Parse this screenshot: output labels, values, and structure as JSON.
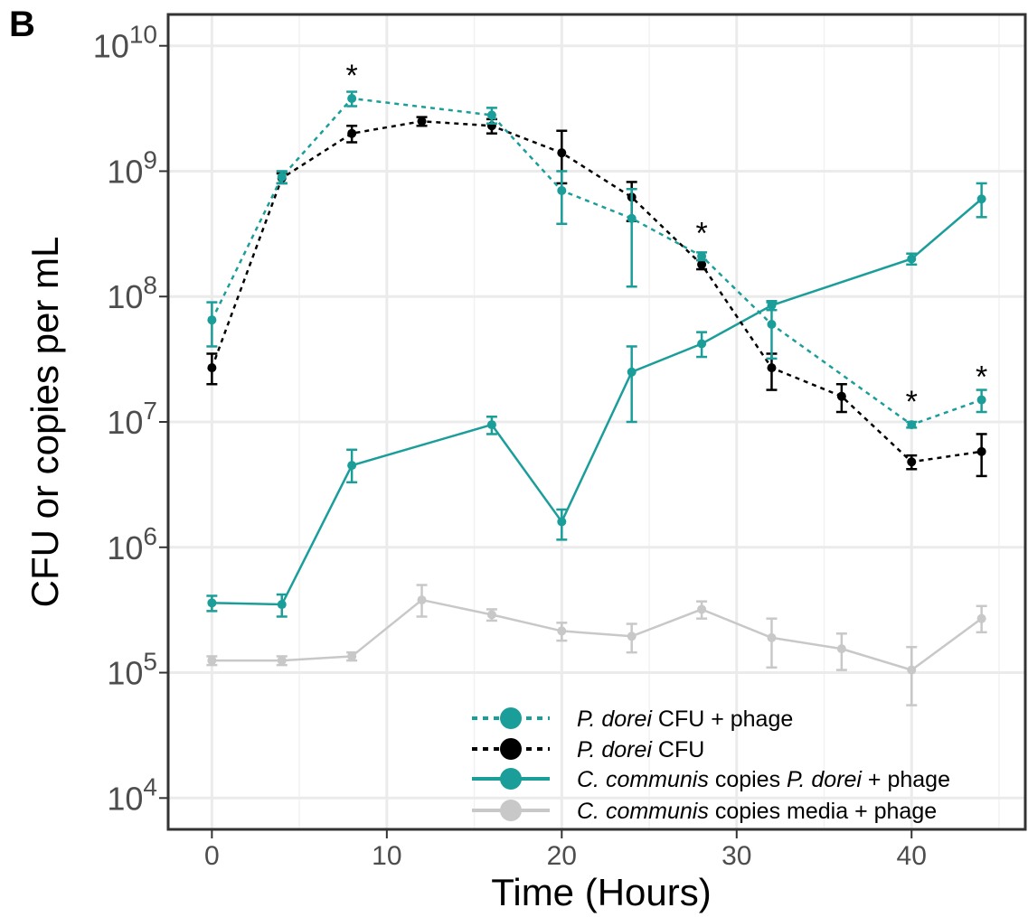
{
  "panel_label": "B",
  "chart_data": {
    "type": "line",
    "title": "",
    "xlabel": "Time (Hours)",
    "ylabel": "CFU or copies per mL",
    "xlim": [
      -2.5,
      46.5
    ],
    "ylim_log10": [
      3.75,
      10.25
    ],
    "y_scale": "log10",
    "x_ticks": [
      0,
      10,
      20,
      30,
      40
    ],
    "x_tick_labels": [
      "0",
      "10",
      "20",
      "30",
      "40"
    ],
    "y_ticks": [
      {
        "value": 10000,
        "base": "10",
        "exp": "4"
      },
      {
        "value": 100000,
        "base": "10",
        "exp": "5"
      },
      {
        "value": 1000000,
        "base": "10",
        "exp": "6"
      },
      {
        "value": 10000000,
        "base": "10",
        "exp": "7"
      },
      {
        "value": 100000000,
        "base": "10",
        "exp": "8"
      },
      {
        "value": 1000000000,
        "base": "10",
        "exp": "9"
      },
      {
        "value": 10000000000,
        "base": "10",
        "exp": "10"
      }
    ],
    "grid": true,
    "legend_position": "bottom-right",
    "series": [
      {
        "name_italic": "P. dorei",
        "name_rest": " CFU + phage",
        "color": "#1b9e9a",
        "line": "dotted",
        "x": [
          0,
          4,
          8,
          16,
          20,
          24,
          28,
          32,
          40,
          44
        ],
        "y": [
          65000000,
          900000000,
          3800000000,
          2800000000,
          700000000,
          420000000,
          210000000,
          60000000,
          9500000,
          15000000
        ],
        "err_low": [
          40000000,
          800000000,
          3300000000,
          2400000000,
          380000000,
          120000000,
          195000000,
          32000000,
          9000000,
          12000000
        ],
        "err_high": [
          90000000,
          1000000000,
          4300000000,
          3200000000,
          1000000000,
          720000000,
          225000000,
          90000000,
          10000000,
          18000000
        ]
      },
      {
        "name_italic": "P. dorei",
        "name_rest": " CFU",
        "color": "#000000",
        "line": "dotted",
        "x": [
          0,
          4,
          8,
          12,
          16,
          20,
          24,
          28,
          32,
          36,
          40,
          44
        ],
        "y": [
          27000000,
          880000000,
          2000000000,
          2500000000,
          2300000000,
          1400000000,
          620000000,
          180000000,
          27000000,
          16000000,
          4800000,
          5800000
        ],
        "err_low": [
          20000000,
          800000000,
          1700000000,
          2300000000,
          2000000000,
          800000000,
          400000000,
          165000000,
          18000000,
          12000000,
          4200000,
          3700000
        ],
        "err_high": [
          35000000,
          960000000,
          2300000000,
          2700000000,
          2600000000,
          2100000000,
          820000000,
          195000000,
          35000000,
          20000000,
          5400000,
          8000000
        ]
      },
      {
        "name_italic": "C. communis",
        "name_rest": " copies ",
        "name_italic2": "P. dorei",
        "name_rest2": " + phage",
        "color": "#1b9e9a",
        "line": "solid",
        "x": [
          0,
          4,
          8,
          16,
          20,
          24,
          28,
          32,
          40,
          44
        ],
        "y": [
          360000,
          350000,
          4500000,
          9500000,
          1600000,
          25000000,
          42000000,
          85000000,
          200000000,
          600000000
        ],
        "err_low": [
          310000,
          280000,
          3300000,
          8000000,
          1150000,
          10000000,
          33000000,
          78000000,
          180000000,
          430000000
        ],
        "err_high": [
          410000,
          420000,
          6000000,
          11000000,
          2000000,
          40000000,
          52000000,
          92000000,
          220000000,
          800000000
        ]
      },
      {
        "name_italic": "C. communis",
        "name_rest": " copies media + phage",
        "color": "#c8c8c8",
        "line": "solid",
        "x": [
          0,
          4,
          8,
          12,
          16,
          20,
          24,
          28,
          32,
          36,
          40,
          44
        ],
        "y": [
          125000,
          125000,
          135000,
          380000,
          290000,
          215000,
          195000,
          320000,
          190000,
          155000,
          105000,
          270000
        ],
        "err_low": [
          115000,
          115000,
          125000,
          280000,
          260000,
          180000,
          145000,
          270000,
          110000,
          105000,
          55000,
          210000
        ],
        "err_high": [
          135000,
          135000,
          145000,
          500000,
          320000,
          250000,
          245000,
          370000,
          270000,
          205000,
          160000,
          340000
        ]
      }
    ],
    "annotations": [
      {
        "text": "*",
        "x": 8,
        "y": 3800000000
      },
      {
        "text": "*",
        "x": 28,
        "y": 210000000
      },
      {
        "text": "*",
        "x": 40,
        "y": 9500000
      },
      {
        "text": "*",
        "x": 44,
        "y": 15000000
      }
    ]
  }
}
